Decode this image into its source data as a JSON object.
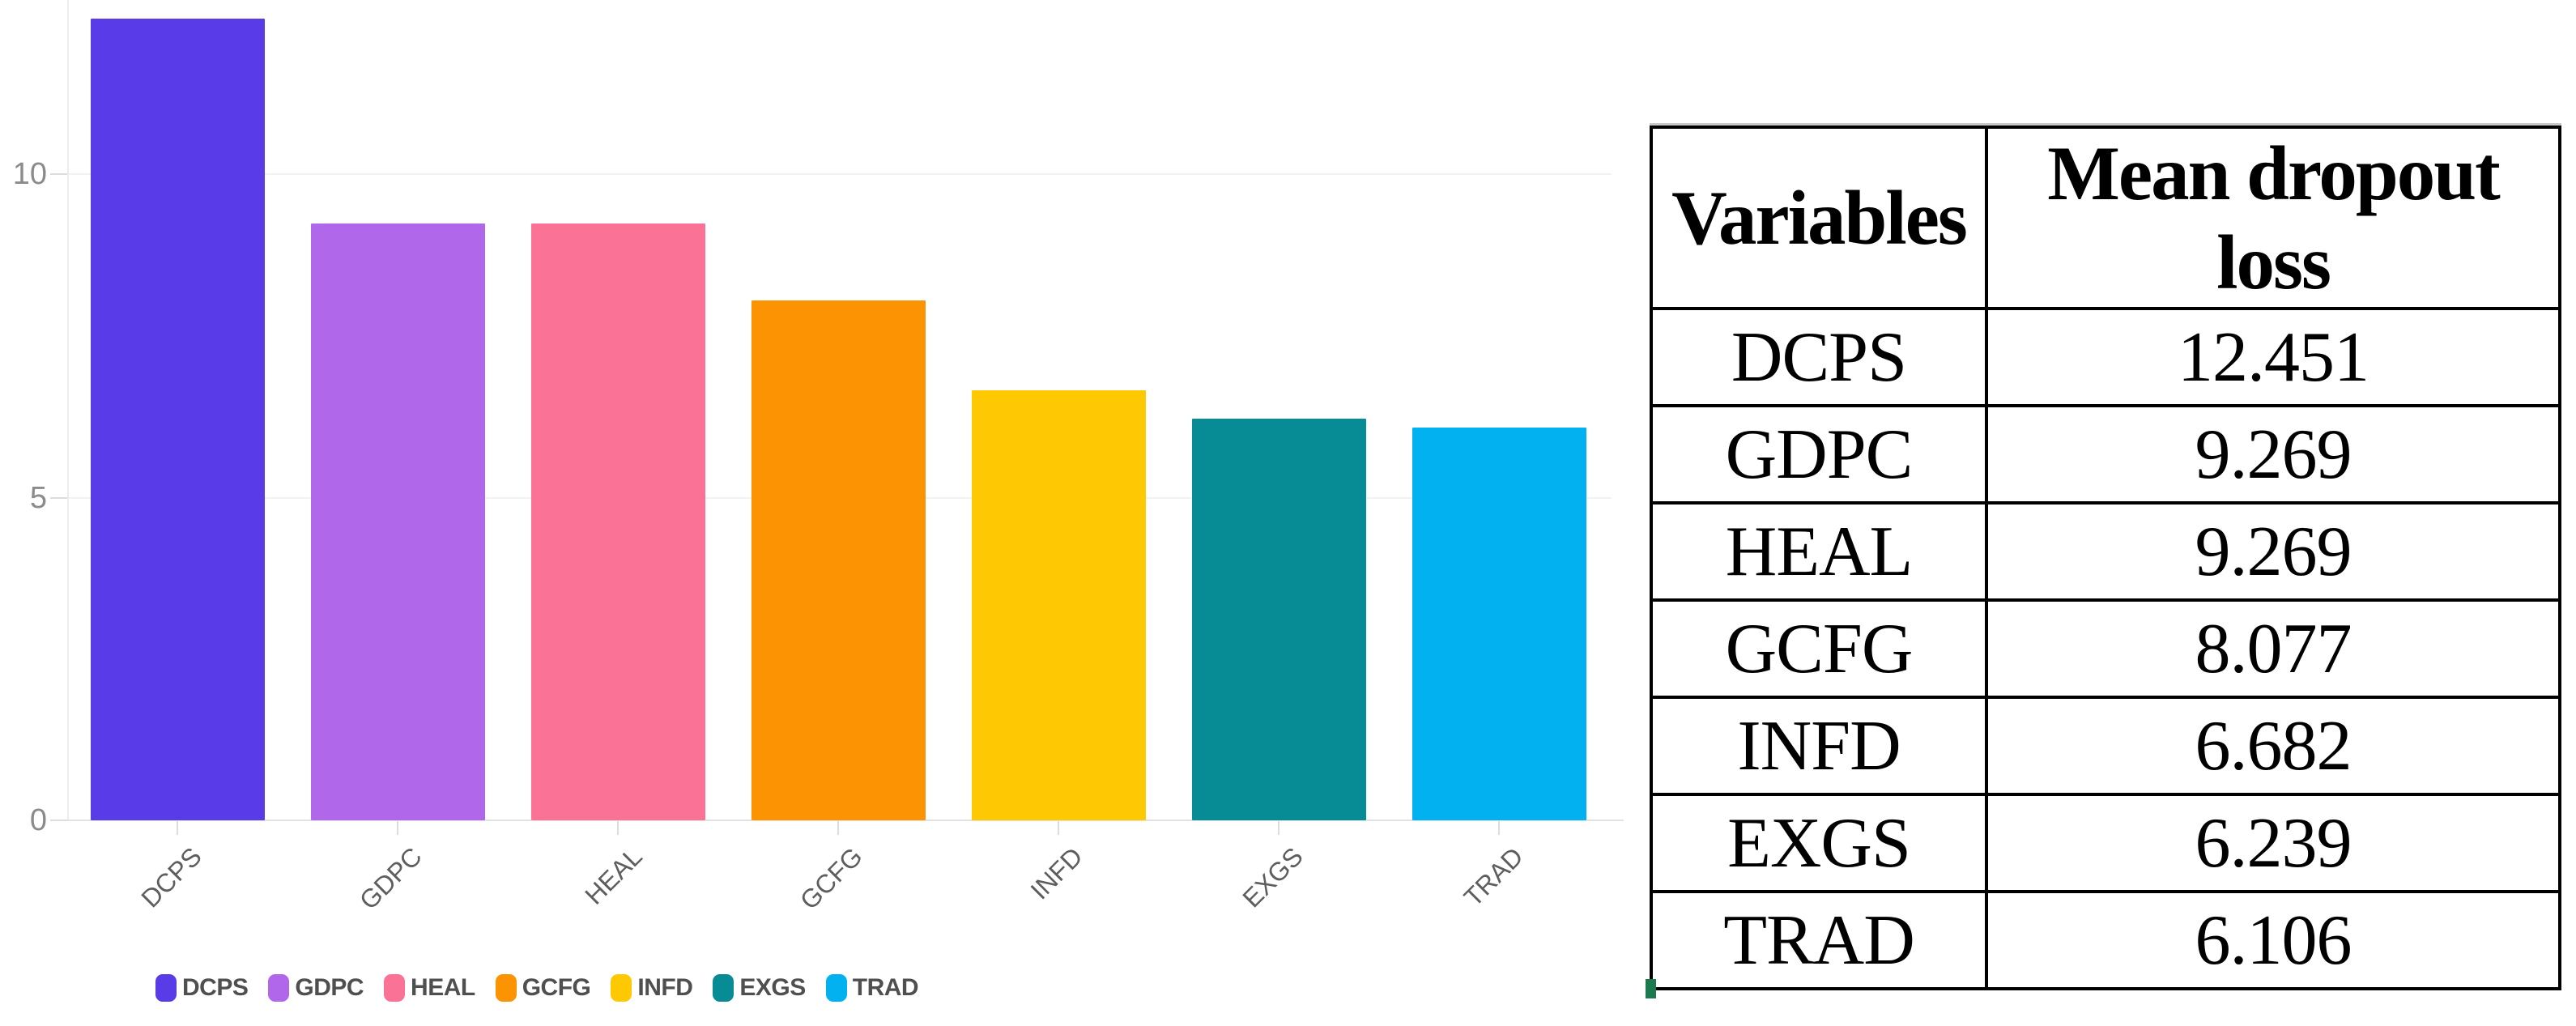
{
  "chart_data": {
    "type": "bar",
    "title": "",
    "xlabel": "",
    "ylabel": "",
    "categories": [
      "DCPS",
      "GDPC",
      "HEAL",
      "GCFG",
      "INFD",
      "EXGS",
      "TRAD"
    ],
    "values": [
      12.451,
      9.269,
      9.269,
      8.077,
      6.682,
      6.239,
      6.106
    ],
    "colors": [
      "#5a3be8",
      "#b067e9",
      "#fa7397",
      "#fc9303",
      "#fec803",
      "#078c96",
      "#02b2f0"
    ],
    "y_ticks": [
      "0",
      "5",
      "10"
    ],
    "ylim": [
      0,
      12.75
    ],
    "grid": "horizontal-light",
    "legend_position": "bottom-left",
    "legend": [
      "DCPS",
      "GDPC",
      "HEAL",
      "GCFG",
      "INFD",
      "EXGS",
      "TRAD"
    ]
  },
  "table": {
    "headers": [
      "Variables",
      "Mean dropout loss"
    ],
    "rows": [
      [
        "DCPS",
        "12.451"
      ],
      [
        "GDPC",
        "9.269"
      ],
      [
        "HEAL",
        "9.269"
      ],
      [
        "GCFG",
        "8.077"
      ],
      [
        "INFD",
        "6.682"
      ],
      [
        "EXGS",
        "6.239"
      ],
      [
        "TRAD",
        "6.106"
      ]
    ]
  }
}
